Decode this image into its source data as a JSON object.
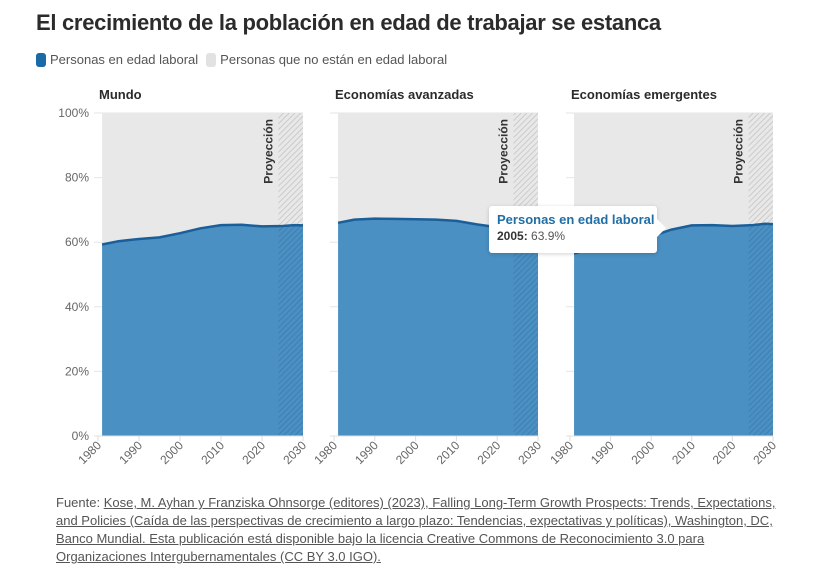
{
  "title": "El crecimiento de la población en edad de trabajar se estanca",
  "legend": [
    {
      "label": "Personas en edad laboral",
      "color": "#1a6aa8"
    },
    {
      "label": "Personas que no están en edad laboral",
      "color": "#e2e2e2"
    }
  ],
  "colors": {
    "area": "#4a90c2",
    "line": "#1a5f99",
    "background_area": "#e8e8e8",
    "projection_hatch": "#c8c8c8"
  },
  "tooltip": {
    "series": "Personas en edad laboral",
    "year": "2005:",
    "value": "63.9%"
  },
  "source": {
    "prefix": "Fuente: ",
    "link_text": "Kose, M. Ayhan y Franziska Ohnsorge (editores) (2023), Falling Long-Term Growth Prospects: Trends, Expectations, and Policies (Caída de las perspectivas de crecimiento a largo plazo: Tendencias, expectativas y políticas), Washington, DC, Banco Mundial. Esta publicación está disponible bajo la licencia Creative Commons de Reconocimiento 3.0 para Organizaciones Intergubernamentales (CC BY 3.0 IGO)."
  },
  "chart_data": [
    {
      "type": "area",
      "title": "Mundo",
      "xlabel": "",
      "ylabel": "",
      "xlim": [
        1980,
        2030
      ],
      "ylim": [
        0,
        100
      ],
      "x_ticks": [
        "1980",
        "1990",
        "2000",
        "2010",
        "2020",
        "2030"
      ],
      "y_ticks": [
        "0%",
        "20%",
        "40%",
        "60%",
        "80%",
        "100%"
      ],
      "projection": {
        "label": "Proyección",
        "start": 2024,
        "end": 2030
      },
      "series": [
        {
          "name": "Personas en edad laboral",
          "x": [
            1981,
            1985,
            1990,
            1995,
            2000,
            2005,
            2010,
            2015,
            2020,
            2025,
            2028,
            2030
          ],
          "values": [
            59.3,
            60.3,
            61.0,
            61.5,
            62.8,
            64.3,
            65.3,
            65.4,
            64.9,
            65.0,
            65.3,
            65.2
          ]
        }
      ]
    },
    {
      "type": "area",
      "title": "Economías avanzadas",
      "xlabel": "",
      "ylabel": "",
      "xlim": [
        1980,
        2030
      ],
      "ylim": [
        0,
        100
      ],
      "x_ticks": [
        "1980",
        "1990",
        "2000",
        "2010",
        "2020",
        "2030"
      ],
      "y_ticks": [
        "0%",
        "20%",
        "40%",
        "60%",
        "80%",
        "100%"
      ],
      "projection": {
        "label": "Proyección",
        "start": 2024,
        "end": 2030
      },
      "series": [
        {
          "name": "Personas en edad laboral",
          "x": [
            1981,
            1985,
            1990,
            1995,
            2000,
            2005,
            2010,
            2015,
            2020,
            2025,
            2030
          ],
          "values": [
            66.0,
            67.0,
            67.3,
            67.2,
            67.1,
            67.0,
            66.6,
            65.5,
            64.6,
            63.8,
            63.0
          ]
        }
      ]
    },
    {
      "type": "area",
      "title": "Economías emergentes",
      "xlabel": "",
      "ylabel": "",
      "xlim": [
        1980,
        2030
      ],
      "ylim": [
        0,
        100
      ],
      "x_ticks": [
        "1980",
        "1990",
        "2000",
        "2010",
        "2020",
        "2030"
      ],
      "y_ticks": [
        "0%",
        "20%",
        "40%",
        "60%",
        "80%",
        "100%"
      ],
      "projection": {
        "label": "Proyección",
        "start": 2024,
        "end": 2030
      },
      "series": [
        {
          "name": "Personas en edad laboral",
          "x": [
            1981,
            1985,
            1990,
            1995,
            2000,
            2005,
            2010,
            2015,
            2020,
            2025,
            2028,
            2030
          ],
          "values": [
            56.5,
            58.0,
            59.5,
            60.5,
            61.8,
            63.9,
            65.2,
            65.3,
            65.0,
            65.3,
            65.7,
            65.6
          ]
        }
      ]
    }
  ]
}
